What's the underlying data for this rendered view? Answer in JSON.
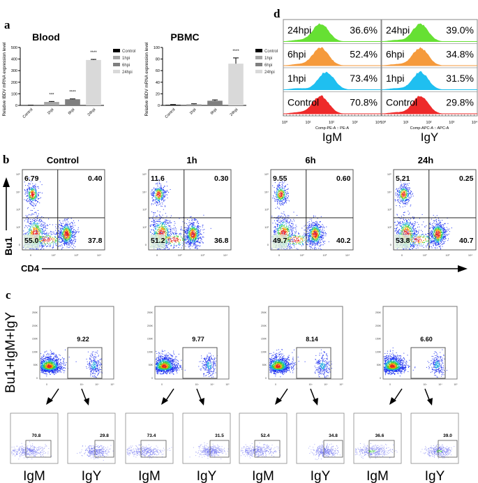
{
  "panels": {
    "a": "a",
    "b": "b",
    "c": "c",
    "d": "d"
  },
  "chart_data": [
    {
      "id": "a-blood",
      "type": "bar",
      "title": "Blood",
      "ylabel": "Relative IBDV mRNA expression level",
      "xlabel": "",
      "categories": [
        "Control",
        "1hpi",
        "6hpi",
        "24hpi"
      ],
      "values": [
        1,
        30,
        53,
        392
      ],
      "errors": [
        1,
        4,
        3,
        5
      ],
      "significance": [
        "",
        "***",
        "****",
        "****"
      ],
      "colors": [
        "#000000",
        "#a6a6a6",
        "#7f7f7f",
        "#d9d9d9"
      ],
      "ylim": [
        0,
        500
      ],
      "yticks": [
        0,
        100,
        200,
        300,
        400,
        500
      ],
      "legend": [
        "Control",
        "1hpi",
        "6hpi",
        "24hpi"
      ],
      "legend_position": "right"
    },
    {
      "id": "a-pbmc",
      "type": "bar",
      "title": "PBMC",
      "ylabel": "Relative IBDV mRNA expression level",
      "xlabel": "",
      "categories": [
        "Control",
        "1hpi",
        "6hpi",
        "24hpi"
      ],
      "values": [
        1,
        2,
        8,
        72
      ],
      "errors": [
        0.5,
        0.8,
        1.5,
        10
      ],
      "significance": [
        "",
        "",
        "",
        "****"
      ],
      "colors": [
        "#000000",
        "#a6a6a6",
        "#7f7f7f",
        "#d9d9d9"
      ],
      "ylim": [
        0,
        100
      ],
      "yticks": [
        0,
        20,
        40,
        60,
        80,
        100
      ],
      "legend": [
        "Control",
        "1hpi",
        "6hpi",
        "24hpi"
      ],
      "legend_position": "right"
    },
    {
      "id": "b-quadrants",
      "type": "scatter",
      "xlabel": "CD4",
      "ylabel": "Bu1",
      "xticks": [
        "0",
        "10²",
        "10³",
        "10⁴"
      ],
      "yticks": [
        "0",
        "10²",
        "10³",
        "10⁴",
        "10⁵"
      ],
      "plots": [
        {
          "title": "Control",
          "ul": "6.79",
          "ur": "0.40",
          "ll": "55.0",
          "lr": "37.8"
        },
        {
          "title": "1h",
          "ul": "11.6",
          "ur": "0.30",
          "ll": "51.2",
          "lr": "36.8"
        },
        {
          "title": "6h",
          "ul": "9.55",
          "ur": "0.60",
          "ll": "49.7",
          "lr": "40.2"
        },
        {
          "title": "24h",
          "ul": "5.21",
          "ur": "0.25",
          "ll": "53.8",
          "lr": "40.7"
        }
      ]
    },
    {
      "id": "c-gating",
      "type": "scatter",
      "ylabel": "Bu1+IgM+IgY",
      "xticks": [
        "0",
        "10³",
        "10⁴",
        "10⁵"
      ],
      "yticks": [
        "0",
        "50K",
        "100K",
        "150K",
        "200K",
        "250K"
      ],
      "gates": [
        "9.22",
        "9.77",
        "8.14",
        "6.60"
      ],
      "sub": [
        {
          "igm": "70.8",
          "igy": "29.8"
        },
        {
          "igm": "73.4",
          "igy": "31.5"
        },
        {
          "igm": "52.4",
          "igy": "34.8"
        },
        {
          "igm": "36.6",
          "igy": "39.0"
        }
      ],
      "sub_labels": [
        "IgM",
        "IgY"
      ]
    },
    {
      "id": "d-histograms",
      "type": "area",
      "xticks": [
        "10⁰",
        "10¹",
        "10²",
        "10³",
        "10⁴"
      ],
      "columns": [
        {
          "axis_label": "Comp-PE-A :: PE-A",
          "marker": "IgM",
          "rows": [
            {
              "label": "24hpi",
              "value": "36.6%",
              "color": "#66e033"
            },
            {
              "label": "6hpi",
              "value": "52.4%",
              "color": "#f59a3c"
            },
            {
              "label": "1hpi",
              "value": "73.4%",
              "color": "#1fbff0"
            },
            {
              "label": "Control",
              "value": "70.8%",
              "color": "#ee2a2a"
            }
          ]
        },
        {
          "axis_label": "Comp-APC-A :: APC-A",
          "marker": "IgY",
          "rows": [
            {
              "label": "24hpi",
              "value": "39.0%",
              "color": "#66e033"
            },
            {
              "label": "6hpi",
              "value": "34.8%",
              "color": "#f59a3c"
            },
            {
              "label": "1hpi",
              "value": "31.5%",
              "color": "#1fbff0"
            },
            {
              "label": "Control",
              "value": "29.8%",
              "color": "#ee2a2a"
            }
          ]
        }
      ]
    }
  ]
}
